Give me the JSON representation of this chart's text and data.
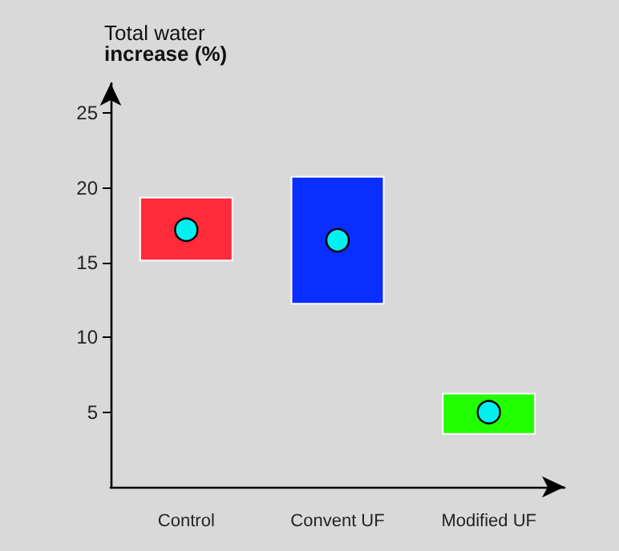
{
  "chart_data": {
    "type": "bar",
    "ylabel": "Total water\nincrease (%)",
    "categories": [
      "Control",
      "Convent UF",
      "Modified UF"
    ],
    "series": [
      {
        "values": [
          4.3,
          8.6,
          2.8
        ],
        "base": [
          15.1,
          12.2,
          3.5
        ],
        "colors": [
          "#ff2a3a",
          "#0a2eff",
          "#22ff00"
        ]
      },
      {
        "type": "scatter",
        "x": [
          "Control",
          "Convent UF",
          "Modified UF"
        ],
        "values": [
          17.2,
          16.5,
          5.0
        ],
        "color": "#00f0f0",
        "marker": "circle"
      }
    ],
    "ylim": [
      0,
      27
    ],
    "yticks": [
      5,
      10,
      15,
      20,
      25
    ],
    "grid": false
  }
}
